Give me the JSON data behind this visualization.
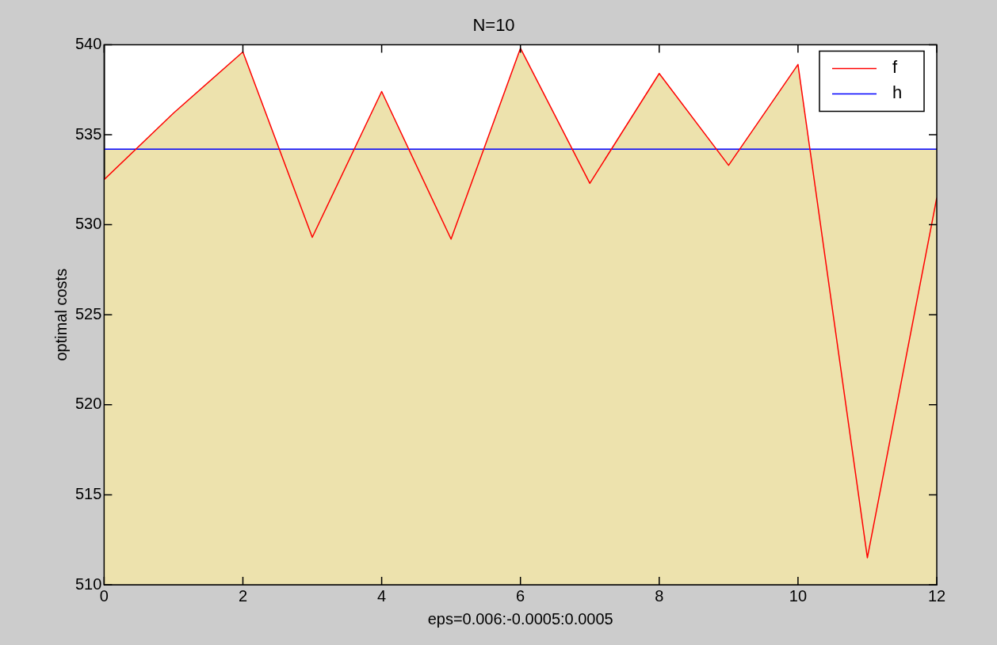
{
  "chart_data": {
    "type": "area",
    "title": "N=10",
    "xlabel": "eps=0.006:-0.0005:0.0005",
    "ylabel": "optimal costs",
    "x": [
      0,
      1,
      2,
      3,
      4,
      5,
      6,
      7,
      8,
      9,
      10,
      11,
      12
    ],
    "series": [
      {
        "name": "f",
        "color": "#ff0000",
        "values": [
          532.5,
          536.2,
          539.6,
          529.3,
          537.4,
          529.2,
          539.8,
          532.3,
          538.4,
          533.3,
          538.9,
          511.5,
          531.5
        ]
      },
      {
        "name": "h",
        "type": "line",
        "color": "#0000ff",
        "values": [
          534.2,
          534.2,
          534.2,
          534.2,
          534.2,
          534.2,
          534.2,
          534.2,
          534.2,
          534.2,
          534.2,
          534.2,
          534.2
        ]
      }
    ],
    "xlim": [
      0,
      12
    ],
    "xticks": [
      0,
      2,
      4,
      6,
      8,
      10,
      12
    ],
    "ylim": [
      510,
      540
    ],
    "yticks": [
      510,
      515,
      520,
      525,
      530,
      535,
      540
    ],
    "bands": [
      {
        "axis": "y",
        "from": 510,
        "to": 534.2,
        "color": "#ede2ad"
      }
    ],
    "grid": false,
    "legend": "top right"
  }
}
